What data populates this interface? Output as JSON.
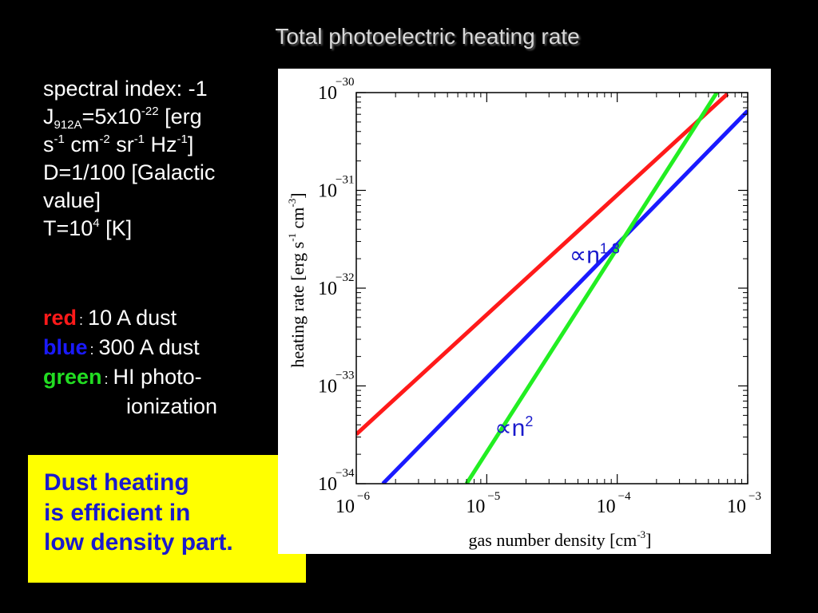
{
  "slide": {
    "title": "Total photoelectric heating rate"
  },
  "params": {
    "spectral_index": "spectral index: -1",
    "j_symbol": "J",
    "j_subscript": "912A",
    "j_value": "=5x10",
    "j_exp": "-22",
    "j_unit_open": " [erg",
    "unit_s": "s",
    "unit_s_exp": "-1",
    "unit_cm": " cm",
    "unit_cm_exp": "-2",
    "unit_sr": " sr",
    "unit_sr_exp": "-1",
    "unit_hz": " Hz",
    "unit_hz_exp": "-1",
    "unit_close": "]",
    "d_line1": "D=1/100 [Galactic",
    "d_line2": "value]",
    "t_prefix": "T=10",
    "t_exp": "4",
    "t_unit": " [K]"
  },
  "legend": [
    {
      "key": "red",
      "sep": ":",
      "desc": "10 A dust",
      "color": "#ff1a1a"
    },
    {
      "key": "blue",
      "sep": ":",
      "desc": "300 A dust",
      "color": "#1a1aff"
    },
    {
      "key": "green",
      "sep": ":",
      "desc": "HI photo-",
      "desc_cont": "ionization",
      "color": "#22dd22"
    }
  ],
  "callout": {
    "line1": "Dust heating",
    "line2": "is efficient in",
    "line3": "low density part."
  },
  "chart_data": {
    "type": "line",
    "x_scale": "log",
    "y_scale": "log",
    "xlim": [
      1e-06,
      0.001
    ],
    "ylim": [
      1e-34,
      1e-30
    ],
    "xlabel": "gas number density [cm",
    "xlabel_exp": "-3",
    "xlabel_close": "]",
    "ylabel_parts": [
      "heating rate [erg s",
      "-1",
      " cm",
      "-3",
      "]"
    ],
    "x_ticks": [
      {
        "value": 1e-06,
        "base": "10",
        "exp": "−6"
      },
      {
        "value": 1e-05,
        "base": "10",
        "exp": "−5"
      },
      {
        "value": 0.0001,
        "base": "10",
        "exp": "−4"
      },
      {
        "value": 0.001,
        "base": "10",
        "exp": "−3"
      }
    ],
    "y_ticks": [
      {
        "value": 1e-30,
        "base": "10",
        "exp": "−30"
      },
      {
        "value": 1e-31,
        "base": "10",
        "exp": "−31"
      },
      {
        "value": 1e-32,
        "base": "10",
        "exp": "−32"
      },
      {
        "value": 1e-33,
        "base": "10",
        "exp": "−33"
      },
      {
        "value": 1e-34,
        "base": "10",
        "exp": "−34"
      }
    ],
    "series": [
      {
        "color": "#ff1a1a",
        "x": [
          1e-06,
          0.0007
        ],
        "y": [
          3.2e-34,
          9.7e-31
        ]
      },
      {
        "color": "#1a1aff",
        "x": [
          1.6e-06,
          0.001
        ],
        "y": [
          1e-34,
          6.5e-31
        ]
      },
      {
        "color": "#22ee22",
        "x": [
          7e-06,
          0.00058
        ],
        "y": [
          1e-34,
          1e-30
        ]
      }
    ],
    "annotations": [
      {
        "symbol": "∝n",
        "exp": "1.3",
        "x": 4.3e-05,
        "y": 1.8e-32
      },
      {
        "symbol": "∝n",
        "exp": "2",
        "x": 1.15e-05,
        "y": 3.1e-34
      }
    ]
  }
}
